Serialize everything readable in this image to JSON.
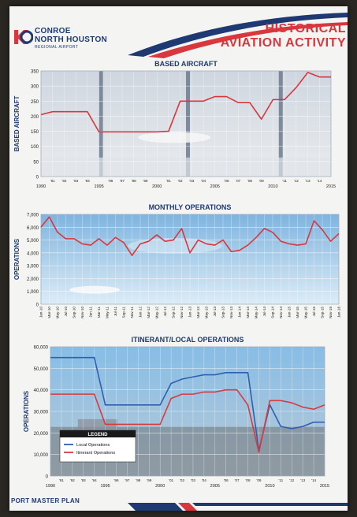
{
  "header": {
    "logo_line1": "CONROE",
    "logo_line2": "NORTH HOUSTON",
    "logo_line3": "REGIONAL AIRPORT",
    "title_line1": "HISTORICAL",
    "title_line2": "AVIATION ACTIVITY"
  },
  "footer": {
    "text": "PORT MASTER PLAN"
  },
  "colors": {
    "navy": "#1f3a73",
    "red": "#d8383d",
    "local_line": "#2f5fb0",
    "itinerant_line": "#d63c3c"
  },
  "chart_data": [
    {
      "type": "line",
      "title": "BASED AIRCRAFT",
      "ylabel": "BASED AIRCRAFT",
      "ylim": [
        0,
        350
      ],
      "yticks": [
        "0",
        "50",
        "100",
        "150",
        "200",
        "250",
        "300",
        "350"
      ],
      "xlim": [
        1990,
        2015
      ],
      "major_ticks": [
        "1990",
        "1995",
        "2000",
        "2005",
        "2010",
        "2015"
      ],
      "minor_ticks": [
        "'91",
        "'92",
        "'93",
        "'94",
        "'96",
        "'97",
        "'98",
        "'99",
        "'01",
        "'02",
        "'03",
        "'04",
        "'06",
        "'07",
        "'08",
        "'09",
        "'11",
        "'12",
        "'13",
        "'14"
      ],
      "series": [
        {
          "x": [
            1990,
            1991,
            1992,
            1993,
            1994,
            1995,
            1996,
            1997,
            1998,
            1999,
            2000,
            2001,
            2002,
            2003,
            2004,
            2005,
            2006,
            2007,
            2008,
            2009,
            2010,
            2011,
            2012,
            2013,
            2014,
            2015
          ],
          "values": [
            205,
            215,
            215,
            215,
            215,
            148,
            148,
            148,
            148,
            148,
            148,
            150,
            250,
            250,
            250,
            265,
            265,
            245,
            245,
            190,
            255,
            255,
            295,
            345,
            330,
            330
          ]
        }
      ]
    },
    {
      "type": "line",
      "title": "MONTHLY OPERATIONS",
      "ylabel": "OPERATIONS",
      "ylim": [
        0,
        7000
      ],
      "yticks": [
        "0",
        "1,000",
        "2,000",
        "3,000",
        "4,000",
        "5,000",
        "6,000",
        "7,000"
      ],
      "categories": [
        "Jan-10",
        "Mar-10",
        "May-10",
        "Jul-10",
        "Sep-10",
        "Nov-10",
        "Jan-11",
        "Mar-11",
        "May-11",
        "Jul-11",
        "Sep-11",
        "Nov-11",
        "Jan-12",
        "Mar-12",
        "May-12",
        "Jul-12",
        "Sep-12",
        "Nov-12",
        "Jan-13",
        "Mar-13",
        "May-13",
        "Jul-13",
        "Sep-13",
        "Nov-13",
        "Jan-14",
        "Mar-14",
        "May-14",
        "Jul-14",
        "Sep-14",
        "Nov-14",
        "Jan-15",
        "Mar-15",
        "May-15",
        "Jul-15",
        "Sep-15",
        "Nov-15",
        "Jan-16"
      ],
      "series": [
        {
          "values": [
            6000,
            6800,
            5600,
            5100,
            5100,
            4700,
            4600,
            5100,
            4600,
            5200,
            4800,
            3800,
            4700,
            4900,
            5400,
            4900,
            5000,
            5900,
            4000,
            5000,
            4700,
            4600,
            5000,
            4100,
            4200,
            4600,
            5200,
            5900,
            5600,
            4900,
            4700,
            4600,
            4700,
            6500,
            5800,
            4900,
            5500
          ]
        }
      ]
    },
    {
      "type": "line",
      "title": "ITINERANT/LOCAL OPERATIONS",
      "ylabel": "OPERATIONS",
      "ylim": [
        0,
        60000
      ],
      "yticks": [
        "0",
        "10,000",
        "20,000",
        "30,000",
        "40,000",
        "50,000",
        "60,000"
      ],
      "xlim": [
        1990,
        2015
      ],
      "major_ticks": [
        "1990",
        "1995",
        "2000",
        "2005",
        "2010",
        "2015"
      ],
      "minor_ticks": [
        "'91",
        "'92",
        "'93",
        "'94",
        "'96",
        "'97",
        "'98",
        "'99",
        "'01",
        "'02",
        "'03",
        "'04",
        "'06",
        "'07",
        "'08",
        "'09",
        "'11",
        "'12",
        "'13",
        "'14"
      ],
      "legend": {
        "title": "LEGEND",
        "placement": "bottom-left"
      },
      "series": [
        {
          "name": "Local Operations",
          "x": [
            1990,
            1991,
            1992,
            1993,
            1994,
            1995,
            1996,
            1997,
            1998,
            1999,
            2000,
            2001,
            2002,
            2003,
            2004,
            2005,
            2006,
            2007,
            2008,
            2009,
            2010,
            2011,
            2012,
            2013,
            2014,
            2015
          ],
          "values": [
            55000,
            55000,
            55000,
            55000,
            55000,
            33000,
            33000,
            33000,
            33000,
            33000,
            33000,
            43000,
            45000,
            46000,
            47000,
            47000,
            48000,
            48000,
            48000,
            12000,
            33000,
            23000,
            22000,
            23000,
            25000,
            25000
          ]
        },
        {
          "name": "Itinerant Operations",
          "x": [
            1990,
            1991,
            1992,
            1993,
            1994,
            1995,
            1996,
            1997,
            1998,
            1999,
            2000,
            2001,
            2002,
            2003,
            2004,
            2005,
            2006,
            2007,
            2008,
            2009,
            2010,
            2011,
            2012,
            2013,
            2014,
            2015
          ],
          "values": [
            38000,
            38000,
            38000,
            38000,
            38000,
            24000,
            24000,
            24000,
            24000,
            24000,
            24000,
            36000,
            38000,
            38000,
            39000,
            39000,
            40000,
            40000,
            33000,
            11000,
            35000,
            35000,
            34000,
            32000,
            31000,
            33000
          ]
        }
      ]
    }
  ]
}
